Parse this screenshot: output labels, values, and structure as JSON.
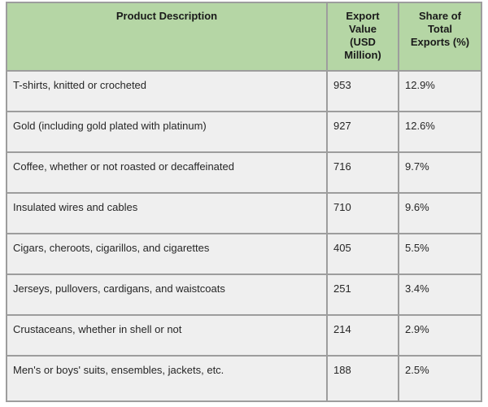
{
  "colors": {
    "header_bg": "#b5d6a5",
    "row_bg": "#efefef",
    "border": "#9d9d9d",
    "text": "#262626"
  },
  "header_display": {
    "col1": "Product Description",
    "col2": "Export\nValue\n(USD\nMillion)",
    "col3": "Share of\nTotal\nExports (%)"
  },
  "chart_data": {
    "type": "table",
    "columns": [
      "Product Description",
      "Export Value (USD Million)",
      "Share of Total Exports (%)"
    ],
    "rows": [
      {
        "product": "T-shirts, knitted or crocheted",
        "export_value": 953,
        "share": "12.9%"
      },
      {
        "product": "Gold (including gold plated with platinum)",
        "export_value": 927,
        "share": "12.6%"
      },
      {
        "product": "Coffee, whether or not roasted or decaffeinated",
        "export_value": 716,
        "share": "9.7%"
      },
      {
        "product": "Insulated wires and cables",
        "export_value": 710,
        "share": "9.6%"
      },
      {
        "product": "Cigars, cheroots, cigarillos, and cigarettes",
        "export_value": 405,
        "share": "5.5%"
      },
      {
        "product": "Jerseys, pullovers, cardigans, and waistcoats",
        "export_value": 251,
        "share": "3.4%"
      },
      {
        "product": "Crustaceans, whether in shell or not",
        "export_value": 214,
        "share": "2.9%"
      },
      {
        "product": "Men's or boys' suits, ensembles, jackets, etc.",
        "export_value": 188,
        "share": "2.5%"
      }
    ]
  }
}
